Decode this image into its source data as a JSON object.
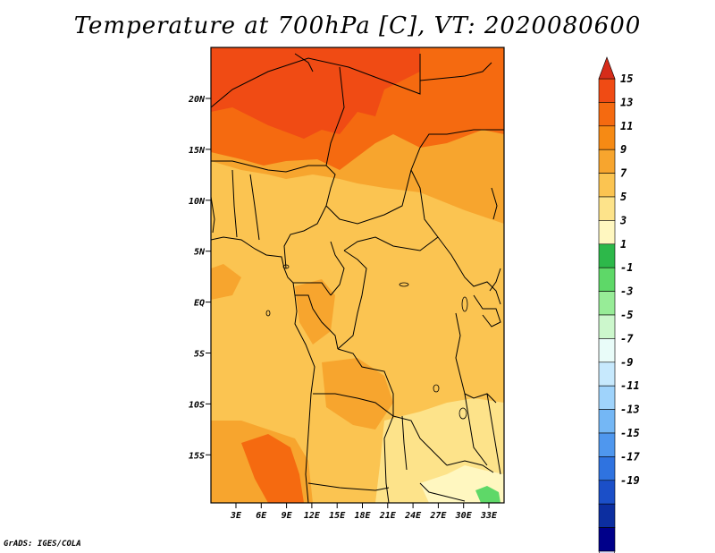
{
  "title": "Temperature at 700hPa [C], VT: 2020080600",
  "credit": "GrADS: IGES/COLA",
  "map": {
    "lat_labels": [
      "20N",
      "15N",
      "10N",
      "5N",
      "EQ",
      "5S",
      "10S",
      "15S"
    ],
    "lon_labels": [
      "3E",
      "6E",
      "9E",
      "12E",
      "15E",
      "18E",
      "21E",
      "24E",
      "27E",
      "30E",
      "33E"
    ]
  },
  "colorbar": {
    "labels": [
      "15",
      "13",
      "11",
      "9",
      "7",
      "5",
      "3",
      "1",
      "-1",
      "-3",
      "-5",
      "-7",
      "-9",
      "-11",
      "-13",
      "-15",
      "-17",
      "-19"
    ],
    "top_color": "#d62c1a",
    "bottom_color": "#d8d8f6",
    "colors": [
      "#f04b14",
      "#f56a10",
      "#f68a14",
      "#f7a52e",
      "#fbc451",
      "#fde38a",
      "#fff7c0",
      "#2db84a",
      "#5ed868",
      "#97ec97",
      "#ccf7cc",
      "#e9fcf9",
      "#c7e9fd",
      "#9fd3fb",
      "#74b7f5",
      "#4f97ee",
      "#2f73e0",
      "#1b4fc8",
      "#0c2ea0",
      "#00008a"
    ]
  }
}
